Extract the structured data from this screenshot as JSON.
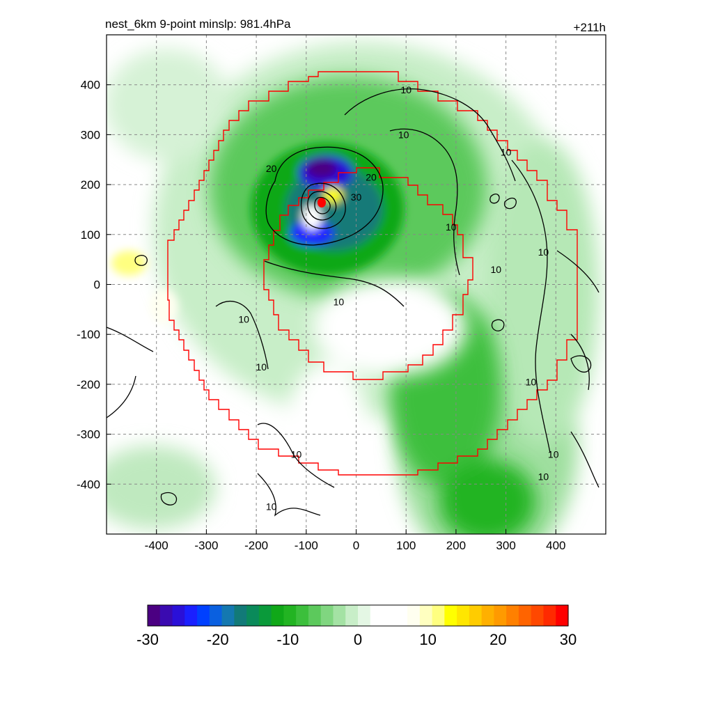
{
  "header": {
    "title": "nest_6km  9-point minslp: 981.4hPa",
    "time_label": "+211h"
  },
  "chart_data": {
    "type": "heatmap",
    "title": "nest_6km  9-point minslp: 981.4hPa",
    "xlabel": "",
    "ylabel": "",
    "xlim": [
      -500,
      500
    ],
    "ylim": [
      -500,
      500
    ],
    "x_ticks": [
      "-400",
      "-300",
      "-200",
      "-100",
      "0",
      "100",
      "200",
      "300",
      "400"
    ],
    "x_tick_values": [
      -400,
      -300,
      -200,
      -100,
      0,
      100,
      200,
      300,
      400
    ],
    "y_ticks": [
      "400",
      "300",
      "200",
      "100",
      "0",
      "-100",
      "-200",
      "-300",
      "-400"
    ],
    "y_tick_values": [
      400,
      300,
      200,
      100,
      0,
      -100,
      -200,
      -300,
      -400
    ],
    "grid": true,
    "grid_style": "dashed",
    "storm_center": {
      "x": -68,
      "y": 163
    },
    "contour_labels": [
      {
        "text": "10",
        "x": 100,
        "y": 390
      },
      {
        "text": "10",
        "x": 95,
        "y": 300
      },
      {
        "text": "10",
        "x": 300,
        "y": 265
      },
      {
        "text": "20",
        "x": -170,
        "y": 232
      },
      {
        "text": "20",
        "x": 30,
        "y": 215
      },
      {
        "text": "30",
        "x": 0,
        "y": 175
      },
      {
        "text": "10",
        "x": 190,
        "y": 115
      },
      {
        "text": "10",
        "x": 375,
        "y": 65
      },
      {
        "text": "10",
        "x": 280,
        "y": 30
      },
      {
        "text": "10",
        "x": -35,
        "y": -35
      },
      {
        "text": "10",
        "x": -225,
        "y": -70
      },
      {
        "text": "10",
        "x": -190,
        "y": -165
      },
      {
        "text": "10",
        "x": 350,
        "y": -195
      },
      {
        "text": "10",
        "x": 395,
        "y": -340
      },
      {
        "text": "10",
        "x": 375,
        "y": -385
      },
      {
        "text": "10",
        "x": -120,
        "y": -340
      },
      {
        "text": "10",
        "x": -170,
        "y": -445
      }
    ],
    "colorbar": {
      "ticks": [
        "-30",
        "-20",
        "-10",
        "0",
        "10",
        "20",
        "30"
      ],
      "tick_values": [
        -30,
        -20,
        -10,
        0,
        10,
        20,
        30
      ],
      "range": [
        -30,
        30
      ],
      "colors": [
        "#4b0082",
        "#3a0ab0",
        "#2a10d8",
        "#1a20ff",
        "#0040ff",
        "#0a60e0",
        "#1478b0",
        "#127a78",
        "#0a8a5a",
        "#0a9a3a",
        "#10a818",
        "#22b422",
        "#3cbf3c",
        "#5cc95c",
        "#80d680",
        "#a4e2a4",
        "#c8eec8",
        "#e4f7e4",
        "#ffffff",
        "#ffffff",
        "#ffffff",
        "#fffff0",
        "#ffffc0",
        "#ffff80",
        "#ffff00",
        "#ffe600",
        "#ffcc00",
        "#ffb000",
        "#ff9a00",
        "#ff8000",
        "#ff6400",
        "#ff4800",
        "#ff2a00",
        "#ff0000"
      ]
    },
    "series": []
  }
}
